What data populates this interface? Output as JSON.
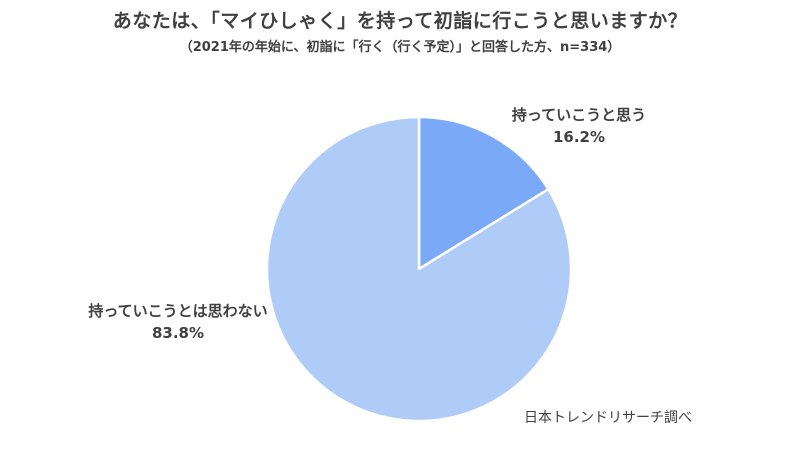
{
  "chart_data": {
    "type": "pie",
    "title": "あなたは、「マイひしゃく」を持って初詣に行こうと思いますか？",
    "subtitle": "（2021年の年始に、初詣に「行く（行く予定）」と回答した方、n=334）",
    "slices": [
      {
        "label": "持っていこうと思う",
        "value": 16.2,
        "value_label": "16.2%",
        "color": "#7aa9f7"
      },
      {
        "label": "持っていこうとは思わない",
        "value": 83.8,
        "value_label": "83.8%",
        "color": "#afcbf8"
      }
    ],
    "start_angle": "12 o'clock",
    "direction": "clockwise",
    "source": "日本トレンドリサーチ調べ"
  }
}
